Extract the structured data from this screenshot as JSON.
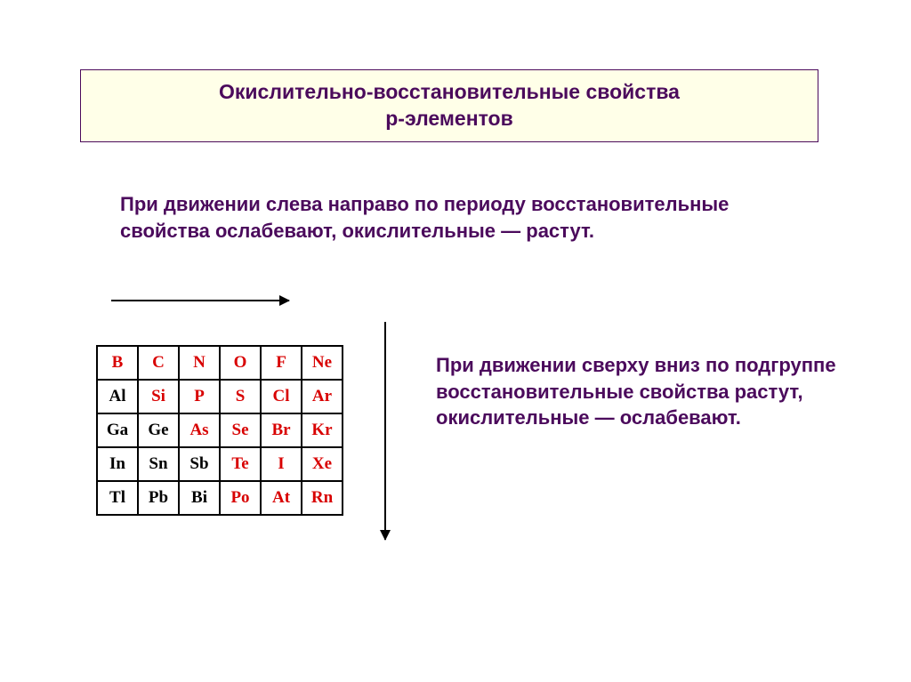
{
  "title": {
    "line1": "Окислительно-восстановительные свойства",
    "line2": "р-элементов"
  },
  "paragraph1": "При движении слева направо по периоду восстановительные свойства ослабевают, окислительные — растут.",
  "paragraph2": "При движении сверху вниз по подгруппе восстановительные свойства растут, окислительные — ослабевают.",
  "table": {
    "rows": [
      [
        {
          "sym": "B",
          "c": "red"
        },
        {
          "sym": "C",
          "c": "red"
        },
        {
          "sym": "N",
          "c": "red"
        },
        {
          "sym": "O",
          "c": "red"
        },
        {
          "sym": "F",
          "c": "red"
        },
        {
          "sym": "Ne",
          "c": "red"
        }
      ],
      [
        {
          "sym": "Al",
          "c": "blk"
        },
        {
          "sym": "Si",
          "c": "red"
        },
        {
          "sym": "P",
          "c": "red"
        },
        {
          "sym": "S",
          "c": "red"
        },
        {
          "sym": "Cl",
          "c": "red"
        },
        {
          "sym": "Ar",
          "c": "red"
        }
      ],
      [
        {
          "sym": "Ga",
          "c": "blk"
        },
        {
          "sym": "Ge",
          "c": "blk"
        },
        {
          "sym": "As",
          "c": "red"
        },
        {
          "sym": "Se",
          "c": "red"
        },
        {
          "sym": "Br",
          "c": "red"
        },
        {
          "sym": "Kr",
          "c": "red"
        }
      ],
      [
        {
          "sym": "In",
          "c": "blk"
        },
        {
          "sym": "Sn",
          "c": "blk"
        },
        {
          "sym": "Sb",
          "c": "blk"
        },
        {
          "sym": "Te",
          "c": "red"
        },
        {
          "sym": "I",
          "c": "red"
        },
        {
          "sym": "Xe",
          "c": "red"
        }
      ],
      [
        {
          "sym": "Tl",
          "c": "blk"
        },
        {
          "sym": "Pb",
          "c": "blk"
        },
        {
          "sym": "Bi",
          "c": "blk"
        },
        {
          "sym": "Po",
          "c": "red"
        },
        {
          "sym": "At",
          "c": "red"
        },
        {
          "sym": "Rn",
          "c": "red"
        }
      ]
    ]
  },
  "colors": {
    "title_text": "#4b0a5c",
    "title_bg": "#ffffe8",
    "body_text": "#4b0a5c",
    "table_red": "#d80000",
    "table_black": "#000000",
    "background": "#ffffff"
  }
}
